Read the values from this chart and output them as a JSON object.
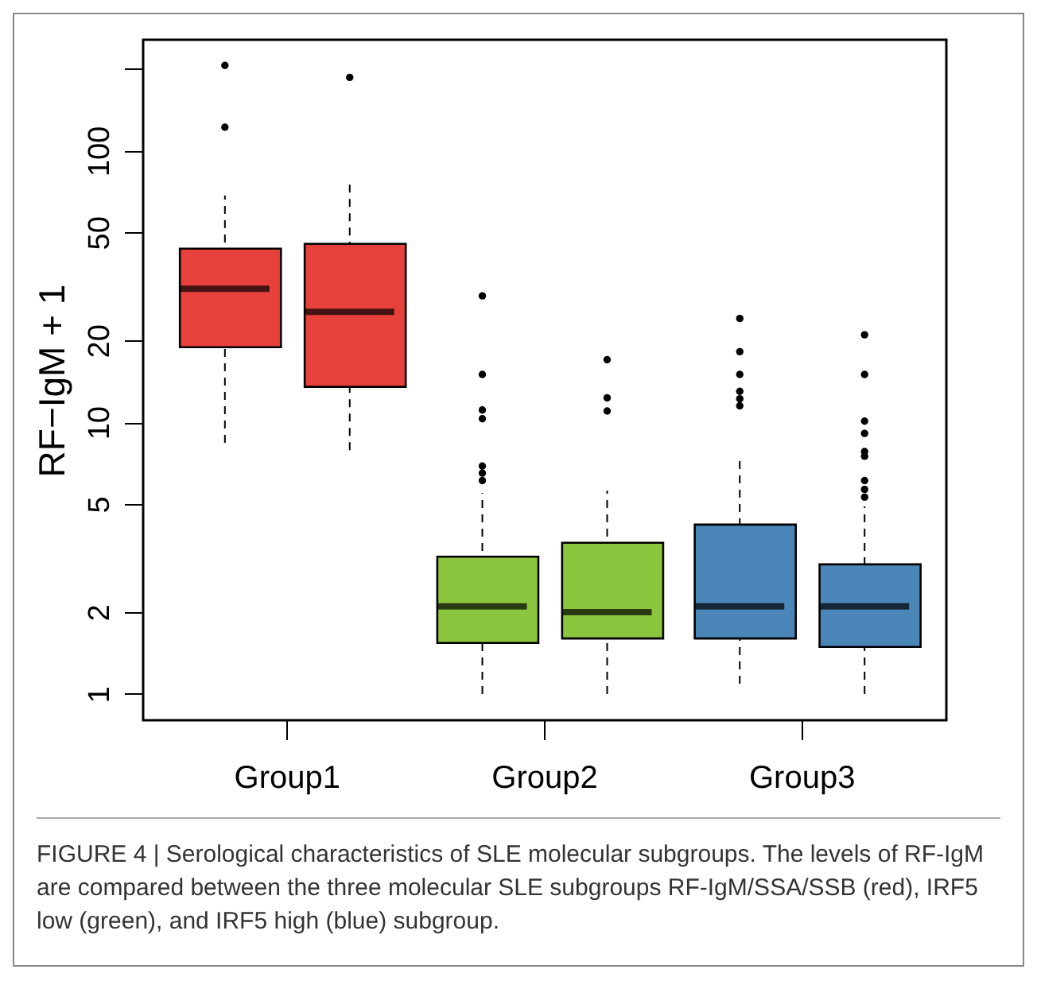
{
  "chart_data": {
    "type": "box",
    "ylabel": "RF−IgM + 1",
    "categories": [
      "Group1",
      "Group2",
      "Group3"
    ],
    "log": true,
    "grid": false,
    "ylim": [
      0.8,
      256
    ],
    "yticks": [
      1,
      2,
      5,
      10,
      20,
      50,
      100,
      {
        "value": 200,
        "label": null
      }
    ],
    "series": [
      {
        "colors": [
          "#e8403a",
          "#8cc63f",
          "#4a86b8"
        ],
        "boxes": [
          {
            "low": 8.4,
            "q1": 18.9,
            "median": 31,
            "q3": 43.6,
            "high": 68.3,
            "outliers": [
              122,
              206
            ]
          },
          {
            "low": 1,
            "q1": 1.54,
            "median": 2.1,
            "q3": 3.2,
            "high": 5.5,
            "outliers": [
              6.1,
              6.5,
              6.9,
              10.3,
              11.1,
              15,
              29.2
            ]
          },
          {
            "low": 1.09,
            "q1": 1.6,
            "median": 2.1,
            "q3": 4.2,
            "high": 7.3,
            "outliers": [
              11.5,
              12.2,
              13,
              15,
              18.2,
              24.1
            ]
          }
        ]
      },
      {
        "colors": [
          "#e8403a",
          "#8cc63f",
          "#4a86b8"
        ],
        "boxes": [
          {
            "low": 7.9,
            "q1": 13.5,
            "median": 25.5,
            "q3": 45.4,
            "high": 78,
            "outliers": [
              186
            ]
          },
          {
            "low": 1,
            "q1": 1.6,
            "median": 2.0,
            "q3": 3.6,
            "high": 5.6,
            "outliers": [
              11,
              12.3,
              17
            ]
          },
          {
            "low": 1,
            "q1": 1.49,
            "median": 2.1,
            "q3": 3.0,
            "high": 4.9,
            "outliers": [
              5.3,
              5.66,
              6.1,
              7.5,
              7.8,
              9.1,
              10.1,
              15,
              21
            ]
          }
        ]
      }
    ],
    "annotations": [
      "FIGURE 4 | Serological characteristics of SLE molecular subgroups. The levels of RF-IgM are compared between the three molecular SLE subgroups RF-IgM/SSA/SSB (red), IRF5 low (green), and IRF5 high (blue) subgroup."
    ]
  }
}
